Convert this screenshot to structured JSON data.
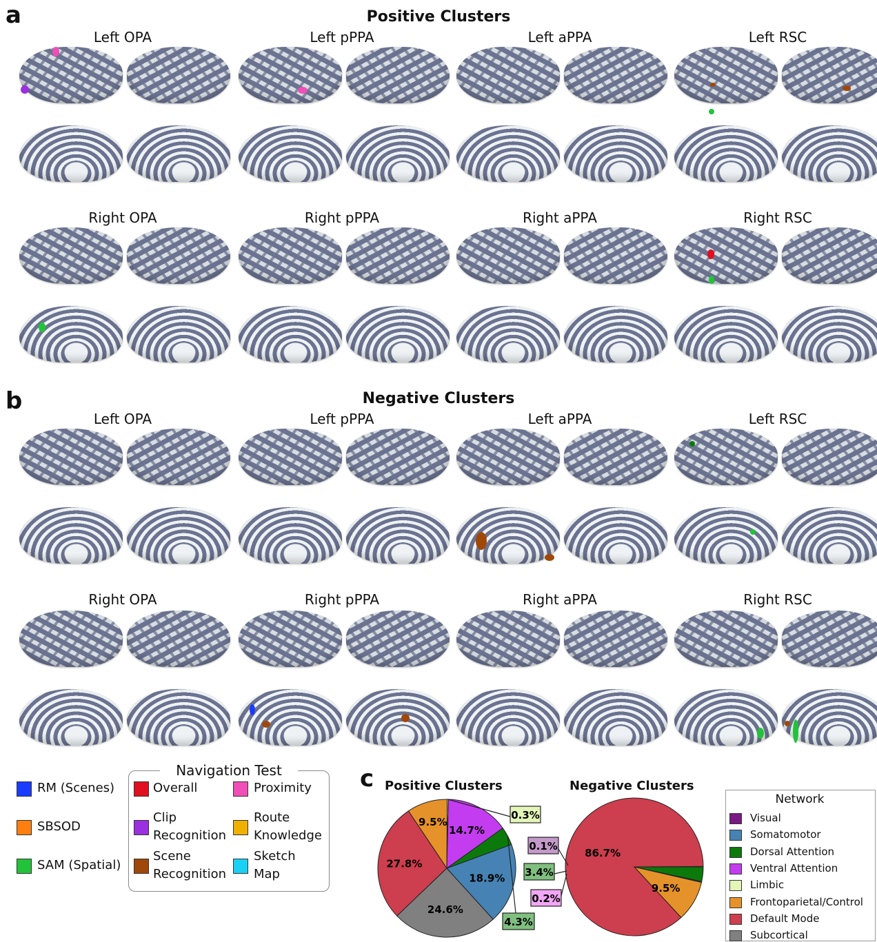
{
  "panels": {
    "a": {
      "letter": "a",
      "title": "Positive Clusters"
    },
    "b": {
      "letter": "b",
      "title": "Negative Clusters"
    },
    "c": {
      "letter": "c"
    }
  },
  "roi_labels": {
    "left": [
      "Left OPA",
      "Left pPPA",
      "Left aPPA",
      "Left RSC"
    ],
    "right": [
      "Right OPA",
      "Right pPPA",
      "Right aPPA",
      "Right RSC"
    ]
  },
  "legend_tests": [
    {
      "label": "RM (Scenes)",
      "color": "#1a3cff"
    },
    {
      "label": "SBSOD",
      "color": "#ff7f0e"
    },
    {
      "label": "SAM (Spatial)",
      "color": "#22c33a"
    }
  ],
  "navigation_legend": {
    "title": "Navigation Test",
    "items": [
      {
        "label": "Overall",
        "color": "#e0101e"
      },
      {
        "label": "Proximity",
        "color": "#ef4fb6"
      },
      {
        "label": "Clip Recognition",
        "color": "#9b30e0"
      },
      {
        "label": "Route Knowledge",
        "color": "#f0b000"
      },
      {
        "label": "Scene Recognition",
        "color": "#a0480a"
      },
      {
        "label": "Sketch Map",
        "color": "#1ad0f5"
      }
    ]
  },
  "network_legend": {
    "title": "Network",
    "items": [
      {
        "label": "Visual",
        "color": "#7b1a84"
      },
      {
        "label": "Somatomotor",
        "color": "#4682b4"
      },
      {
        "label": "Dorsal Attention",
        "color": "#0b7a0b"
      },
      {
        "label": "Ventral Attention",
        "color": "#c43cf0"
      },
      {
        "label": "Limbic",
        "color": "#e4f5b8"
      },
      {
        "label": "Frontoparietal/Control",
        "color": "#e6922a"
      },
      {
        "label": "Default Mode",
        "color": "#cd3e4e"
      },
      {
        "label": "Subcortical",
        "color": "#808080"
      }
    ]
  },
  "chart_data": [
    {
      "type": "pie",
      "title": "Positive Clusters",
      "slices": [
        {
          "name": "Visual",
          "value": 0.0,
          "label": ""
        },
        {
          "name": "Somatomotor",
          "value": 18.9,
          "label": "18.9%"
        },
        {
          "name": "Dorsal Attention",
          "value": 4.3,
          "label": "4.3%"
        },
        {
          "name": "Ventral Attention",
          "value": 14.7,
          "label": "14.7%"
        },
        {
          "name": "Limbic",
          "value": 0.3,
          "label": "0.3%"
        },
        {
          "name": "Frontoparietal/Control",
          "value": 9.5,
          "label": "9.5%"
        },
        {
          "name": "Default Mode",
          "value": 27.8,
          "label": "27.8%"
        },
        {
          "name": "Subcortical",
          "value": 24.6,
          "label": "24.6%"
        }
      ]
    },
    {
      "type": "pie",
      "title": "Negative Clusters",
      "slices": [
        {
          "name": "Visual",
          "value": 0.1,
          "label": "0.1%"
        },
        {
          "name": "Dorsal Attention",
          "value": 3.4,
          "label": "3.4%"
        },
        {
          "name": "Ventral Attention",
          "value": 0.2,
          "label": "0.2%"
        },
        {
          "name": "Frontoparietal/Control",
          "value": 9.5,
          "label": "9.5%"
        },
        {
          "name": "Default Mode",
          "value": 86.7,
          "label": "86.7%"
        }
      ]
    }
  ]
}
